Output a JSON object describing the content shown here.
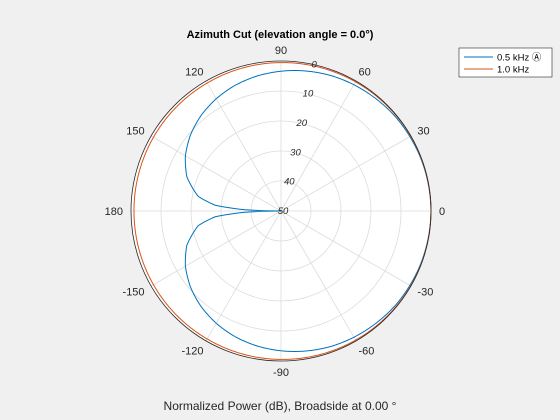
{
  "chart_data": {
    "type": "polar-line",
    "title": "Azimuth Cut (elevation angle = 0.0°)",
    "xlabel": "Normalized Power (dB), Broadside at 0.00 °",
    "angle_ticks": [
      0,
      30,
      60,
      90,
      120,
      150,
      180,
      -150,
      -120,
      -90,
      -60,
      -30
    ],
    "angle_tick_labels": [
      "0",
      "30",
      "60",
      "90",
      "120",
      "150",
      "180",
      "-150",
      "-120",
      "-90",
      "-60",
      "-30"
    ],
    "radial_ticks": [
      0,
      -10,
      -20,
      -30,
      -40,
      -50
    ],
    "radial_tick_labels": [
      "0",
      "10",
      "20",
      "30",
      "40",
      "50"
    ],
    "radial_range_db": [
      -50,
      0
    ],
    "grid": true,
    "legend_position": "top-right",
    "series": [
      {
        "name": "0.5 kHz Ⓐ",
        "color": "#0072bd",
        "angle_deg": [
          0,
          10,
          20,
          30,
          40,
          50,
          60,
          70,
          80,
          90,
          100,
          110,
          120,
          130,
          140,
          150,
          160,
          170,
          175,
          178,
          180,
          -178,
          -175,
          -170,
          -160,
          -150,
          -140,
          -130,
          -120,
          -110,
          -100,
          -90,
          -80,
          -70,
          -60,
          -50,
          -40,
          -30,
          -20,
          -10
        ],
        "power_db": [
          0,
          -0.1,
          -0.2,
          -0.4,
          -0.6,
          -1.0,
          -1.4,
          -1.9,
          -2.6,
          -3.4,
          -4.3,
          -5.4,
          -6.8,
          -8.5,
          -10.6,
          -13.2,
          -16.6,
          -22.0,
          -28.0,
          -38.0,
          -50.0,
          -38.0,
          -28.0,
          -22.0,
          -16.6,
          -13.2,
          -10.6,
          -8.5,
          -6.8,
          -5.4,
          -4.3,
          -3.4,
          -2.6,
          -1.9,
          -1.4,
          -1.0,
          -0.6,
          -0.4,
          -0.2,
          -0.1
        ]
      },
      {
        "name": "1.0 kHz",
        "color": "#d95319",
        "angle_deg": [
          0,
          20,
          40,
          60,
          80,
          100,
          120,
          140,
          160,
          180,
          -160,
          -140,
          -120,
          -100,
          -80,
          -60,
          -40,
          -20
        ],
        "power_db": [
          0,
          -0.05,
          -0.15,
          -0.3,
          -0.45,
          -0.6,
          -0.75,
          -0.85,
          -0.95,
          -1.0,
          -0.95,
          -0.85,
          -0.75,
          -0.6,
          -0.45,
          -0.3,
          -0.15,
          -0.05
        ]
      }
    ]
  }
}
